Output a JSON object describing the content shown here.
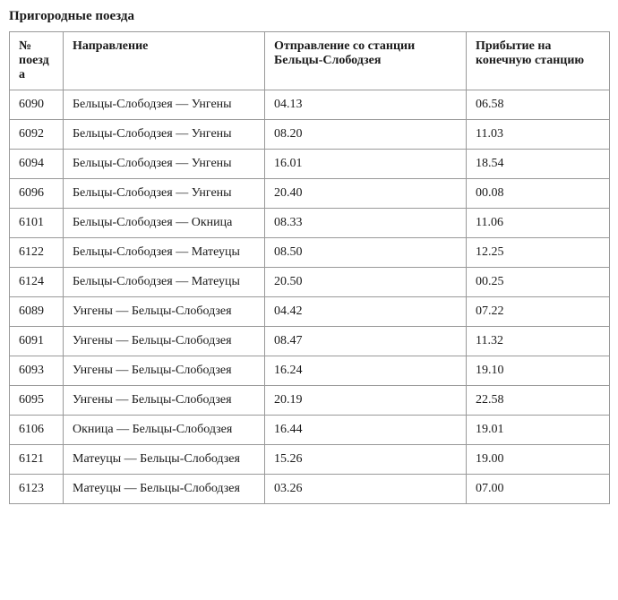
{
  "title": "Пригородные поезда",
  "table": {
    "columns": [
      "№ поезда",
      "Направление",
      "Отправление со станции Бельцы-Слободзея",
      "Прибытие на конечную станцию"
    ],
    "rows": [
      [
        "6090",
        "Бельцы-Слободзея — Унгены",
        "04.13",
        "06.58"
      ],
      [
        "6092",
        "Бельцы-Слободзея — Унгены",
        "08.20",
        "11.03"
      ],
      [
        "6094",
        "Бельцы-Слободзея — Унгены",
        "16.01",
        "18.54"
      ],
      [
        "6096",
        "Бельцы-Слободзея — Унгены",
        "20.40",
        "00.08"
      ],
      [
        "6101",
        "Бельцы-Слободзея — Окница",
        "08.33",
        "11.06"
      ],
      [
        "6122",
        "Бельцы-Слободзея — Матеуцы",
        "08.50",
        "12.25"
      ],
      [
        "6124",
        "Бельцы-Слободзея — Матеуцы",
        "20.50",
        "00.25"
      ],
      [
        "6089",
        "Унгены — Бельцы-Слободзея",
        "04.42",
        "07.22"
      ],
      [
        "6091",
        "Унгены — Бельцы-Слободзея",
        "08.47",
        "11.32"
      ],
      [
        "6093",
        "Унгены — Бельцы-Слободзея",
        "16.24",
        "19.10"
      ],
      [
        "6095",
        "Унгены — Бельцы-Слободзея",
        "20.19",
        "22.58"
      ],
      [
        "6106",
        "Окница — Бельцы-Слободзея",
        "16.44",
        "19.01"
      ],
      [
        "6121",
        "Матеуцы — Бельцы-Слободзея",
        "15.26",
        "19.00"
      ],
      [
        "6123",
        "Матеуцы — Бельцы-Слободзея",
        "03.26",
        "07.00"
      ]
    ]
  }
}
